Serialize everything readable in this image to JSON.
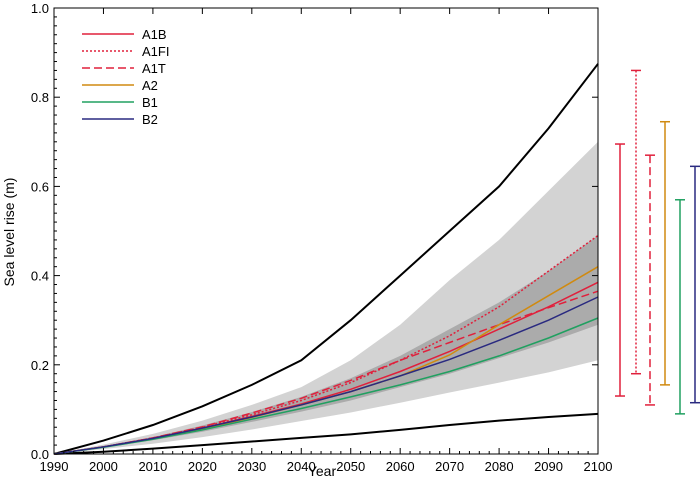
{
  "chart_data": {
    "type": "line",
    "xlabel": "Year",
    "ylabel": "Sea level rise (m)",
    "xlim": [
      1990,
      2100
    ],
    "ylim": [
      0,
      1.0
    ],
    "xticks": [
      "1990",
      "2000",
      "2010",
      "2020",
      "2030",
      "2040",
      "2050",
      "2060",
      "2070",
      "2080",
      "2090",
      "2100"
    ],
    "yticks": [
      "0.0",
      "0.2",
      "0.4",
      "0.6",
      "0.8",
      "1.0"
    ],
    "x": [
      1990,
      2000,
      2010,
      2020,
      2030,
      2040,
      2050,
      2060,
      2070,
      2080,
      2090,
      2100
    ],
    "legend_position": "top-left",
    "series": [
      {
        "name": "A1B",
        "color": "#e0203c",
        "dash": "solid",
        "values": [
          0,
          0.016,
          0.035,
          0.058,
          0.084,
          0.112,
          0.145,
          0.185,
          0.23,
          0.28,
          0.33,
          0.385
        ]
      },
      {
        "name": "A1FI",
        "color": "#e0203c",
        "dash": "dotted",
        "values": [
          0,
          0.016,
          0.036,
          0.06,
          0.088,
          0.12,
          0.16,
          0.21,
          0.265,
          0.33,
          0.41,
          0.49
        ]
      },
      {
        "name": "A1T",
        "color": "#e0203c",
        "dash": "dashed",
        "values": [
          0,
          0.016,
          0.036,
          0.061,
          0.092,
          0.125,
          0.165,
          0.21,
          0.25,
          0.29,
          0.328,
          0.365
        ]
      },
      {
        "name": "A2",
        "color": "#d08a10",
        "dash": "solid",
        "values": [
          0,
          0.016,
          0.034,
          0.056,
          0.082,
          0.11,
          0.14,
          0.175,
          0.222,
          0.29,
          0.355,
          0.42
        ]
      },
      {
        "name": "B1",
        "color": "#20a060",
        "dash": "solid",
        "values": [
          0,
          0.015,
          0.033,
          0.054,
          0.078,
          0.102,
          0.128,
          0.155,
          0.185,
          0.22,
          0.26,
          0.305
        ]
      },
      {
        "name": "B2",
        "color": "#2a2a80",
        "dash": "solid",
        "values": [
          0,
          0.016,
          0.035,
          0.058,
          0.083,
          0.11,
          0.14,
          0.175,
          0.212,
          0.255,
          0.3,
          0.352
        ]
      }
    ],
    "envelopes": {
      "outer_band_light": {
        "color": "#d3d3d3",
        "upper": [
          0,
          0.021,
          0.045,
          0.075,
          0.11,
          0.15,
          0.21,
          0.29,
          0.39,
          0.48,
          0.59,
          0.7
        ],
        "lower": [
          0,
          0.011,
          0.023,
          0.038,
          0.055,
          0.074,
          0.093,
          0.115,
          0.138,
          0.16,
          0.183,
          0.21
        ]
      },
      "inner_band_dark": {
        "color": "#ababab",
        "upper": [
          0,
          0.017,
          0.038,
          0.064,
          0.094,
          0.128,
          0.17,
          0.22,
          0.28,
          0.34,
          0.41,
          0.49
        ],
        "lower": [
          0,
          0.014,
          0.031,
          0.05,
          0.072,
          0.095,
          0.12,
          0.15,
          0.18,
          0.215,
          0.25,
          0.29
        ]
      },
      "upper_black": {
        "color": "#000000",
        "values": [
          0,
          0.03,
          0.065,
          0.107,
          0.155,
          0.21,
          0.3,
          0.4,
          0.5,
          0.6,
          0.73,
          0.875
        ]
      },
      "lower_black": {
        "color": "#000000",
        "values": [
          0,
          0.005,
          0.012,
          0.02,
          0.028,
          0.036,
          0.044,
          0.054,
          0.065,
          0.075,
          0.083,
          0.09
        ]
      }
    },
    "range_bars_2100": [
      {
        "scenario": "A1B",
        "color": "#e0203c",
        "dash": "solid",
        "min": 0.13,
        "max": 0.695
      },
      {
        "scenario": "A1FI",
        "color": "#e0203c",
        "dash": "dotted",
        "min": 0.18,
        "max": 0.86
      },
      {
        "scenario": "A1T",
        "color": "#e0203c",
        "dash": "dashed",
        "min": 0.11,
        "max": 0.67
      },
      {
        "scenario": "A2",
        "color": "#d08a10",
        "dash": "solid",
        "min": 0.155,
        "max": 0.745
      },
      {
        "scenario": "B1",
        "color": "#20a060",
        "dash": "solid",
        "min": 0.09,
        "max": 0.57
      },
      {
        "scenario": "B2",
        "color": "#2a2a80",
        "dash": "solid",
        "min": 0.115,
        "max": 0.645
      }
    ]
  }
}
